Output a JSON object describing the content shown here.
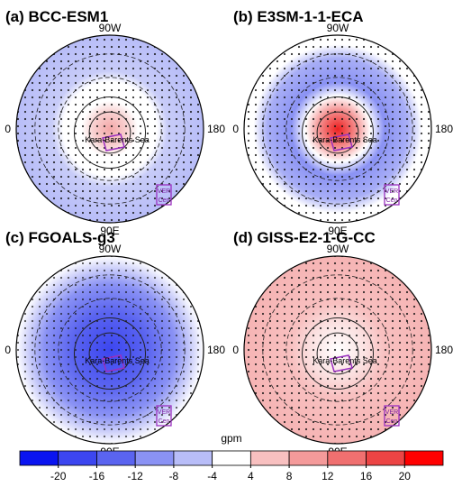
{
  "panels": [
    {
      "title": "(a) BCC-ESM1"
    },
    {
      "title": "(b) E3SM-1-1-ECA"
    },
    {
      "title": "(c) FGOALS-g3"
    },
    {
      "title": "(d) GISS-E2-1-G-CC"
    }
  ],
  "map_labels": {
    "north": "90W",
    "south": "90E",
    "west": "0",
    "east": "180",
    "region": "Kara-Barents Sea",
    "box1": "VER",
    "box2": "Cen"
  },
  "colorbar": {
    "label": "gpm",
    "ticks": [
      -20,
      -16,
      -12,
      -8,
      -4,
      4,
      8,
      12,
      16,
      20
    ],
    "colors": [
      "#0a14f0",
      "#3c46f0",
      "#5a64f0",
      "#8a92f4",
      "#b8bdf8",
      "#ffffff",
      "#f8c0c0",
      "#f49a9a",
      "#f07070",
      "#ec4444",
      "#ff0000"
    ]
  }
}
